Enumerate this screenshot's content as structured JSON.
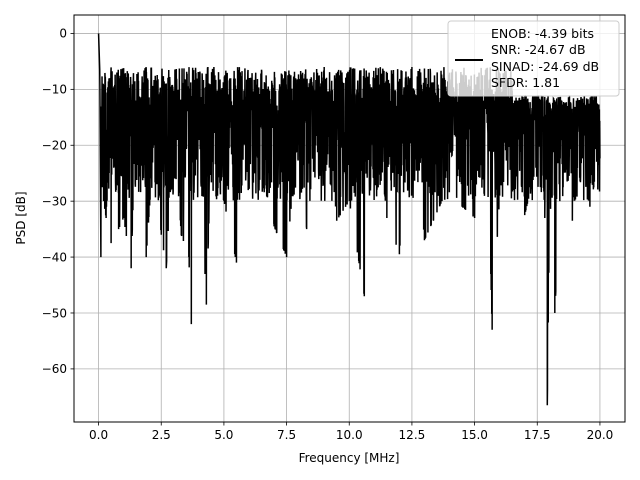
{
  "chart_data": {
    "type": "line",
    "title": "",
    "xlabel": "Frequency [MHz]",
    "ylabel": "PSD [dB]",
    "xlim": [
      -0.98,
      21.0
    ],
    "ylim": [
      -69.5,
      3.3
    ],
    "xticks": [
      0.0,
      2.5,
      5.0,
      7.5,
      10.0,
      12.5,
      15.0,
      17.5,
      20.0
    ],
    "xtick_labels": [
      "0.0",
      "2.5",
      "5.0",
      "7.5",
      "10.0",
      "12.5",
      "15.0",
      "17.5",
      "20.0"
    ],
    "yticks": [
      0,
      -10,
      -20,
      -30,
      -40,
      -50,
      -60
    ],
    "ytick_labels": [
      "0",
      "−10",
      "−20",
      "−30",
      "−40",
      "−50",
      "−60"
    ],
    "grid": true,
    "legend_position": "top-right",
    "legend_entries": [
      "ENOB: -4.39 bits",
      "SNR: -24.67 dB",
      "SINAD: -24.69 dB",
      "SFDR: 1.81"
    ],
    "series": [
      {
        "color": "#000000",
        "description": "noise-like PSD trace, approx envelope",
        "x": [
          0.0,
          0.05,
          0.1,
          0.15,
          0.2,
          0.3,
          0.4,
          0.5,
          0.6,
          0.7,
          0.8,
          1.0,
          1.3,
          1.5,
          1.9,
          2.2,
          2.5,
          2.7,
          3.0,
          3.3,
          3.6,
          3.7,
          4.0,
          4.3,
          4.4,
          4.6,
          5.0,
          5.5,
          5.9,
          6.5,
          7.0,
          7.5,
          7.9,
          8.3,
          9.0,
          9.5,
          10.0,
          10.6,
          11.0,
          11.5,
          12.0,
          12.5,
          13.0,
          13.7,
          14.0,
          14.5,
          15.0,
          15.5,
          15.7,
          16.0,
          16.5,
          17.0,
          17.5,
          17.8,
          17.9,
          18.0,
          18.2,
          18.5,
          18.9,
          19.3,
          19.6,
          20.0
        ],
        "y": [
          0.0,
          -7.0,
          -46.0,
          -16.0,
          -30.0,
          -33.0,
          -20.0,
          -37.5,
          -12.0,
          -28.0,
          -35.0,
          -33.0,
          -42.0,
          -12.0,
          -40.0,
          -20.0,
          -36.0,
          -42.0,
          -16.0,
          -36.0,
          -40.0,
          -52.0,
          -18.0,
          -48.5,
          -34.0,
          -6.0,
          -30.0,
          -41.0,
          -24.0,
          -6.5,
          -34.5,
          -40.0,
          -20.5,
          -35.0,
          -6.0,
          -33.5,
          -30.0,
          -47.0,
          -8.0,
          -33.0,
          -39.5,
          -6.0,
          -37.0,
          -30.0,
          -7.0,
          -31.0,
          -33.0,
          -16.0,
          -53.0,
          -29.0,
          -12.0,
          -32.5,
          -23.0,
          -33.0,
          -66.5,
          -28.0,
          -50.0,
          -20.0,
          -33.5,
          -15.0,
          -31.0,
          -22.0
        ]
      }
    ]
  }
}
